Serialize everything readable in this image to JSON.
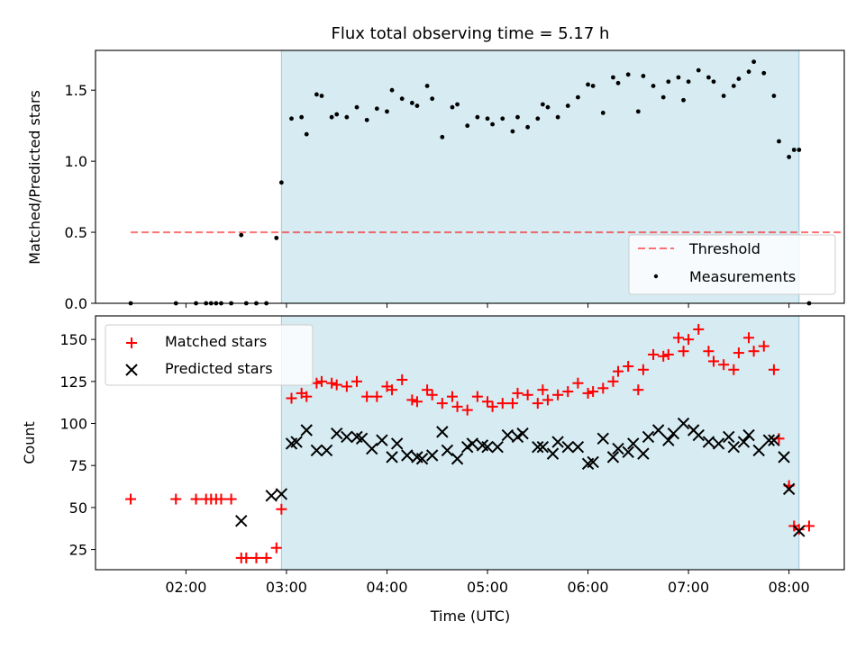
{
  "figure": {
    "title": "Flux total observing time = 5.17 h",
    "xlabel": "Time (UTC)",
    "x_tick_labels": [
      "02:00",
      "03:00",
      "04:00",
      "05:00",
      "06:00",
      "07:00",
      "08:00"
    ],
    "x_tick_hours": [
      2,
      3,
      4,
      5,
      6,
      7,
      8
    ],
    "x_range_hours": [
      1.1,
      8.55
    ],
    "observing_window_hours": [
      2.95,
      8.1
    ],
    "colors": {
      "window": "#add8e6",
      "threshold": "#ff0000",
      "measurements": "#000000",
      "matched": "#ff0000",
      "predicted": "#000000"
    }
  },
  "chart_data": [
    {
      "type": "scatter",
      "ylabel": "Matched/Predicted stars",
      "ylim": [
        0,
        1.78
      ],
      "y_ticks": [
        0,
        0.5,
        1.0,
        1.5
      ],
      "y_tick_labels": [
        "0.0",
        "0.5",
        "1.0",
        "1.5"
      ],
      "threshold": {
        "name": "Threshold",
        "value": 0.5,
        "x_range": [
          1.45,
          8.55
        ]
      },
      "legend": {
        "position": "lower right",
        "entries": [
          "Threshold",
          "Measurements"
        ]
      },
      "series": [
        {
          "name": "Measurements",
          "x": [
            1.45,
            1.9,
            2.1,
            2.2,
            2.25,
            2.3,
            2.35,
            2.45,
            2.55,
            2.6,
            2.7,
            2.8,
            2.9,
            2.95,
            3.05,
            3.15,
            3.2,
            3.3,
            3.35,
            3.45,
            3.5,
            3.6,
            3.7,
            3.8,
            3.9,
            4.0,
            4.05,
            4.15,
            4.25,
            4.3,
            4.4,
            4.45,
            4.55,
            4.65,
            4.7,
            4.8,
            4.9,
            5.0,
            5.05,
            5.15,
            5.25,
            5.3,
            5.4,
            5.5,
            5.55,
            5.6,
            5.7,
            5.8,
            5.9,
            6.0,
            6.05,
            6.15,
            6.25,
            6.3,
            6.4,
            6.5,
            6.55,
            6.65,
            6.75,
            6.8,
            6.9,
            6.95,
            7.0,
            7.1,
            7.2,
            7.25,
            7.35,
            7.45,
            7.5,
            7.6,
            7.65,
            7.75,
            7.85,
            7.9,
            8.0,
            8.05,
            8.1,
            8.2
          ],
          "y": [
            0.0,
            0.0,
            0.0,
            0.0,
            0.0,
            0.0,
            0.0,
            0.0,
            0.48,
            0.0,
            0.0,
            0.0,
            0.46,
            0.85,
            1.3,
            1.31,
            1.19,
            1.47,
            1.46,
            1.31,
            1.33,
            1.31,
            1.38,
            1.29,
            1.37,
            1.35,
            1.5,
            1.44,
            1.41,
            1.39,
            1.53,
            1.44,
            1.17,
            1.38,
            1.4,
            1.25,
            1.31,
            1.3,
            1.26,
            1.3,
            1.21,
            1.31,
            1.24,
            1.3,
            1.4,
            1.38,
            1.31,
            1.39,
            1.45,
            1.54,
            1.53,
            1.34,
            1.59,
            1.55,
            1.61,
            1.35,
            1.6,
            1.53,
            1.45,
            1.56,
            1.59,
            1.43,
            1.56,
            1.64,
            1.59,
            1.56,
            1.46,
            1.53,
            1.58,
            1.63,
            1.7,
            1.62,
            1.46,
            1.14,
            1.03,
            1.08,
            1.08,
            0.0
          ]
        }
      ]
    },
    {
      "type": "scatter",
      "ylabel": "Count",
      "ylim": [
        13,
        164
      ],
      "y_ticks": [
        25,
        50,
        75,
        100,
        125,
        150
      ],
      "y_tick_labels": [
        "25",
        "50",
        "75",
        "100",
        "125",
        "150"
      ],
      "legend": {
        "position": "upper left",
        "entries": [
          "Matched stars",
          "Predicted stars"
        ]
      },
      "series": [
        {
          "name": "Matched stars",
          "marker": "+",
          "x": [
            1.45,
            1.9,
            2.1,
            2.2,
            2.25,
            2.3,
            2.35,
            2.45,
            2.55,
            2.6,
            2.7,
            2.8,
            2.9,
            2.95,
            3.05,
            3.15,
            3.2,
            3.3,
            3.35,
            3.45,
            3.5,
            3.6,
            3.7,
            3.8,
            3.9,
            4.0,
            4.05,
            4.15,
            4.25,
            4.3,
            4.4,
            4.45,
            4.55,
            4.65,
            4.7,
            4.8,
            4.9,
            5.0,
            5.05,
            5.15,
            5.25,
            5.3,
            5.4,
            5.5,
            5.55,
            5.6,
            5.7,
            5.8,
            5.9,
            6.0,
            6.05,
            6.15,
            6.25,
            6.3,
            6.4,
            6.5,
            6.55,
            6.65,
            6.75,
            6.8,
            6.9,
            6.95,
            7.0,
            7.1,
            7.2,
            7.25,
            7.35,
            7.45,
            7.5,
            7.6,
            7.65,
            7.75,
            7.85,
            7.9,
            8.0,
            8.05,
            8.1,
            8.2
          ],
          "y": [
            55,
            55,
            55,
            55,
            55,
            55,
            55,
            55,
            20,
            20,
            20,
            20,
            26,
            49,
            115,
            118,
            116,
            124,
            125,
            124,
            123,
            122,
            125,
            116,
            116,
            122,
            120,
            126,
            114,
            113,
            120,
            117,
            112,
            116,
            110,
            108,
            116,
            113,
            110,
            112,
            112,
            118,
            117,
            112,
            120,
            114,
            117,
            119,
            124,
            118,
            119,
            121,
            125,
            131,
            134,
            120,
            132,
            141,
            140,
            141,
            151,
            143,
            150,
            156,
            143,
            137,
            135,
            132,
            142,
            151,
            143,
            146,
            132,
            91,
            63,
            39,
            37,
            39
          ]
        },
        {
          "name": "Predicted stars",
          "marker": "x",
          "x": [
            2.55,
            2.85,
            2.95,
            3.05,
            3.1,
            3.2,
            3.3,
            3.4,
            3.5,
            3.6,
            3.7,
            3.75,
            3.85,
            3.95,
            4.05,
            4.1,
            4.2,
            4.3,
            4.35,
            4.45,
            4.55,
            4.6,
            4.7,
            4.8,
            4.85,
            4.95,
            5.0,
            5.1,
            5.2,
            5.3,
            5.35,
            5.5,
            5.55,
            5.65,
            5.7,
            5.8,
            5.9,
            6.0,
            6.05,
            6.15,
            6.25,
            6.3,
            6.4,
            6.45,
            6.55,
            6.6,
            6.7,
            6.8,
            6.85,
            6.95,
            7.05,
            7.1,
            7.2,
            7.3,
            7.4,
            7.45,
            7.55,
            7.6,
            7.7,
            7.8,
            7.85,
            7.95,
            8.0,
            8.1
          ],
          "y": [
            42,
            57,
            58,
            88,
            89,
            96,
            84,
            84,
            94,
            92,
            92,
            91,
            85,
            90,
            80,
            88,
            81,
            80,
            79,
            81,
            95,
            84,
            79,
            86,
            88,
            87,
            86,
            86,
            93,
            92,
            94,
            86,
            86,
            82,
            89,
            86,
            86,
            76,
            77,
            91,
            80,
            85,
            83,
            88,
            82,
            92,
            96,
            90,
            94,
            100,
            96,
            93,
            89,
            88,
            92,
            86,
            89,
            93,
            84,
            90,
            90,
            80,
            61,
            36
          ]
        }
      ]
    }
  ]
}
